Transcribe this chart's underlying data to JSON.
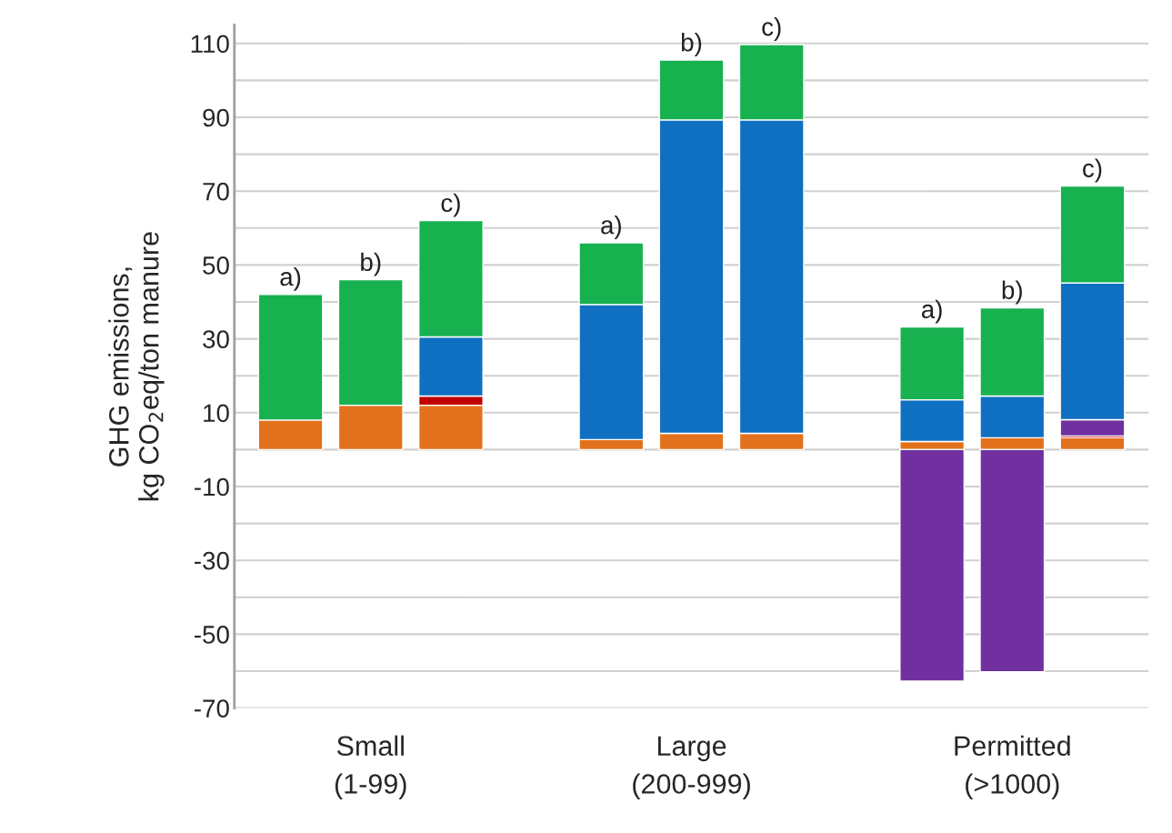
{
  "chart_data": {
    "type": "bar",
    "stacked": true,
    "ylabel": "GHG emissions,\nkg CO$_{2}$eq/ton manure",
    "categories": [
      "a)",
      "b)",
      "c)",
      null,
      "a)",
      "b)",
      "c)",
      null,
      "a)",
      "b)",
      "c)"
    ],
    "annotations": [
      "Small\n(1-99)",
      "Large\n(200-999)",
      "Permitted\n(>1000)"
    ],
    "series": [
      {
        "color": "#e2711d",
        "values": [
          8,
          12,
          12,
          null,
          2.7,
          4.4,
          4.4,
          null,
          2.2,
          3.2,
          3.2
        ]
      },
      {
        "color": "#c00000",
        "values": [
          null,
          null,
          2.5,
          null,
          null,
          null,
          null,
          null,
          null,
          null,
          0.5
        ]
      },
      {
        "color": "#7030a0",
        "values": [
          null,
          null,
          null,
          null,
          null,
          null,
          null,
          null,
          -62.7,
          -60.2,
          4.4
        ]
      },
      {
        "color": "#0f6fc1",
        "values": [
          null,
          null,
          16,
          null,
          36.6,
          84.9,
          84.9,
          null,
          11.3,
          11.3,
          37
        ]
      },
      {
        "color": "#17b150",
        "values": [
          34,
          34,
          31.5,
          null,
          16.7,
          16.2,
          20.4,
          null,
          19.7,
          23.9,
          26.3
        ]
      }
    ],
    "ylim": [
      -70,
      115
    ],
    "yticks": [
      -70,
      {
        "value": -60,
        "label": null
      },
      -50,
      {
        "value": -40,
        "label": null
      },
      -30,
      {
        "value": -20,
        "label": null
      },
      -10,
      {
        "value": 0,
        "label": null
      },
      10,
      {
        "value": 20,
        "label": null
      },
      30,
      {
        "value": 40,
        "label": null
      },
      50,
      {
        "value": 60,
        "label": null
      },
      70,
      {
        "value": 80,
        "label": null
      },
      90,
      {
        "value": 100,
        "label": null
      },
      110
    ],
    "grid": "y",
    "legend": false
  }
}
